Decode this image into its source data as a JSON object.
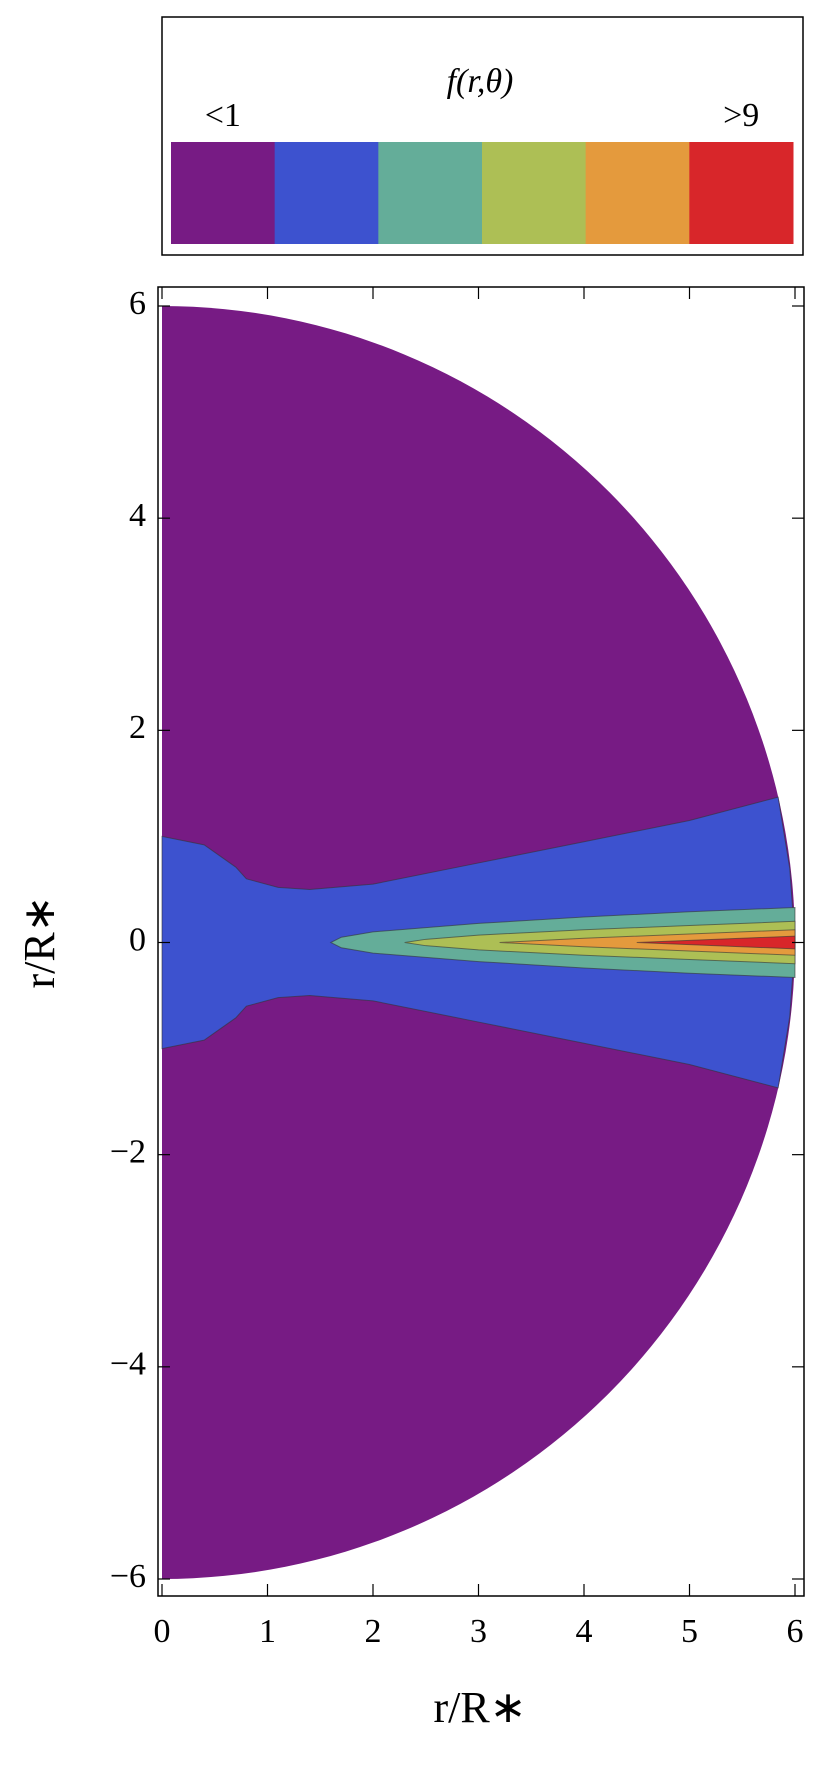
{
  "chart_data": {
    "type": "contour",
    "legend_title": "f(r,θ)",
    "legend_labels": [
      "<1",
      null,
      null,
      null,
      null,
      ">9"
    ],
    "legend_colors": [
      "#771b84",
      "#3d52cf",
      "#64ad99",
      "#adbf55",
      "#e49a3d",
      "#d8262a"
    ],
    "xlabel": "r/R∗",
    "ylabel": "r/R∗",
    "xlim": [
      0,
      6
    ],
    "ylim": [
      -6,
      6
    ],
    "xticks": [
      0,
      1,
      2,
      3,
      4,
      5,
      6
    ],
    "yticks": [
      {
        "value": -6,
        "label": "−6"
      },
      {
        "value": -4,
        "label": "−4"
      },
      {
        "value": -2,
        "label": "−2"
      },
      0,
      2,
      4,
      6
    ],
    "domain_radius": 6,
    "domain_color": "#771b84",
    "regions": [
      {
        "color": "#3d52cf",
        "x": [
          0,
          0.4,
          0.7,
          0.8,
          1.1,
          1.4,
          2,
          3,
          4,
          5,
          5.84,
          5.95,
          6,
          5.95,
          5.84,
          5,
          4,
          3,
          2,
          1.4,
          1.1,
          0.8,
          0.7,
          0.4,
          0
        ],
        "y": [
          1,
          0.92,
          0.71,
          0.6,
          0.52,
          0.5,
          0.55,
          0.75,
          0.95,
          1.15,
          1.37,
          0.7,
          0,
          -0.7,
          -1.37,
          -1.15,
          -0.95,
          -0.75,
          -0.55,
          -0.5,
          -0.52,
          -0.6,
          -0.71,
          -0.92,
          -1
        ]
      },
      {
        "color": "#64ad99",
        "x": [
          1.6,
          1.7,
          2,
          3,
          4,
          5,
          6,
          6,
          5,
          4,
          3,
          2,
          1.7
        ],
        "y": [
          0,
          0.05,
          0.1,
          0.18,
          0.24,
          0.29,
          0.33,
          -0.33,
          -0.29,
          -0.24,
          -0.18,
          -0.1,
          -0.05
        ]
      },
      {
        "color": "#adbf55",
        "x": [
          2.3,
          2.5,
          3,
          4,
          5,
          6,
          6,
          5,
          4,
          3,
          2.5
        ],
        "y": [
          0,
          0.03,
          0.07,
          0.12,
          0.16,
          0.2,
          -0.2,
          -0.16,
          -0.12,
          -0.07,
          -0.03
        ]
      },
      {
        "color": "#e49a3d",
        "x": [
          3.2,
          4,
          5,
          6,
          6,
          5,
          4
        ],
        "y": [
          0,
          0.04,
          0.08,
          0.12,
          -0.12,
          -0.08,
          -0.04
        ]
      },
      {
        "color": "#d8262a",
        "x": [
          4.5,
          5,
          6,
          6,
          5
        ],
        "y": [
          0,
          0.02,
          0.06,
          -0.06,
          -0.02
        ]
      }
    ]
  }
}
